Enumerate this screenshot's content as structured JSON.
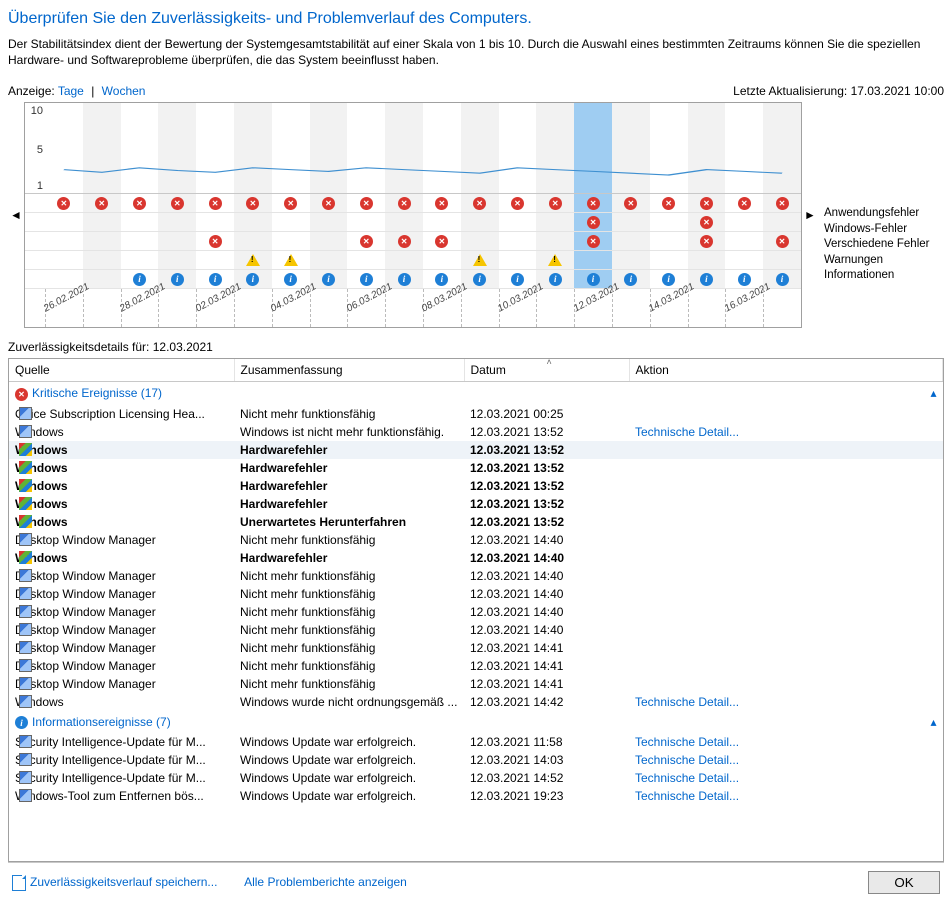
{
  "heading": "Überprüfen Sie den Zuverlässigkeits- und Problemverlauf des Computers.",
  "description": "Der Stabilitätsindex dient der Bewertung der Systemgesamtstabilität auf einer Skala von 1 bis 10. Durch die Auswahl eines bestimmten Zeitraums können Sie die speziellen Hardware- und Softwareprobleme überprüfen, die das System beeinflusst haben.",
  "view": {
    "label": "Anzeige:",
    "days": "Tage",
    "weeks": "Wochen",
    "updated_label": "Letzte Aktualisierung:",
    "updated_value": "17.03.2021 10:00"
  },
  "chart": {
    "yticks": [
      "10",
      "5",
      "1"
    ],
    "stability_values": [
      2.6,
      2.3,
      2.8,
      2.5,
      2.3,
      2.8,
      2.6,
      2.4,
      2.8,
      2.6,
      2.4,
      2.2,
      2.8,
      2.6,
      2.4,
      2.2,
      2.0,
      2.6,
      2.4,
      2.2
    ],
    "line_color": "#3e8fd0",
    "selected_index": 14,
    "days": [
      {
        "label": "26.02.2021",
        "shade": false,
        "err": true,
        "win": false,
        "misc": false,
        "warn": false,
        "info": false
      },
      {
        "label": "",
        "shade": true,
        "err": true,
        "win": false,
        "misc": false,
        "warn": false,
        "info": false
      },
      {
        "label": "28.02.2021",
        "shade": false,
        "err": true,
        "win": false,
        "misc": false,
        "warn": false,
        "info": true
      },
      {
        "label": "",
        "shade": true,
        "err": true,
        "win": false,
        "misc": false,
        "warn": false,
        "info": true
      },
      {
        "label": "02.03.2021",
        "shade": false,
        "err": true,
        "win": false,
        "misc": true,
        "warn": false,
        "info": true
      },
      {
        "label": "",
        "shade": true,
        "err": true,
        "win": false,
        "misc": false,
        "warn": true,
        "info": true
      },
      {
        "label": "04.03.2021",
        "shade": false,
        "err": true,
        "win": false,
        "misc": false,
        "warn": true,
        "info": true
      },
      {
        "label": "",
        "shade": true,
        "err": true,
        "win": false,
        "misc": false,
        "warn": false,
        "info": true
      },
      {
        "label": "06.03.2021",
        "shade": false,
        "err": true,
        "win": false,
        "misc": true,
        "warn": false,
        "info": true
      },
      {
        "label": "",
        "shade": true,
        "err": true,
        "win": false,
        "misc": true,
        "warn": false,
        "info": true
      },
      {
        "label": "08.03.2021",
        "shade": false,
        "err": true,
        "win": false,
        "misc": true,
        "warn": false,
        "info": true
      },
      {
        "label": "",
        "shade": true,
        "err": true,
        "win": false,
        "misc": false,
        "warn": true,
        "info": true
      },
      {
        "label": "10.03.2021",
        "shade": false,
        "err": true,
        "win": false,
        "misc": false,
        "warn": false,
        "info": true
      },
      {
        "label": "",
        "shade": true,
        "err": true,
        "win": false,
        "misc": false,
        "warn": true,
        "info": true
      },
      {
        "label": "12.03.2021",
        "shade": false,
        "err": true,
        "win": true,
        "misc": true,
        "warn": false,
        "info": true
      },
      {
        "label": "",
        "shade": true,
        "err": true,
        "win": false,
        "misc": false,
        "warn": false,
        "info": true
      },
      {
        "label": "14.03.2021",
        "shade": false,
        "err": true,
        "win": false,
        "misc": false,
        "warn": false,
        "info": true
      },
      {
        "label": "",
        "shade": true,
        "err": true,
        "win": true,
        "misc": true,
        "warn": false,
        "info": true
      },
      {
        "label": "16.03.2021",
        "shade": false,
        "err": true,
        "win": false,
        "misc": false,
        "warn": false,
        "info": true
      },
      {
        "label": "",
        "shade": true,
        "err": true,
        "win": false,
        "misc": true,
        "warn": false,
        "info": true
      }
    ],
    "legend": {
      "app": "Anwendungsfehler",
      "win": "Windows-Fehler",
      "misc": "Verschiedene Fehler",
      "warn": "Warnungen",
      "info": "Informationen"
    }
  },
  "details_for_label": "Zuverlässigkeitsdetails für:",
  "details_for_value": "12.03.2021",
  "columns": {
    "source": "Quelle",
    "summary": "Zusammenfassung",
    "date": "Datum",
    "action": "Aktion"
  },
  "groups": {
    "critical": "Kritische Ereignisse (17)",
    "info": "Informationsereignisse (7)"
  },
  "action_link": "Technische Detail...",
  "critical_rows": [
    {
      "ico": "app",
      "src": "Office Subscription Licensing Hea...",
      "sum": "Nicht mehr funktionsfähig",
      "date": "12.03.2021 00:25",
      "act": "",
      "bold": false
    },
    {
      "ico": "app",
      "src": "Windows",
      "sum": "Windows ist nicht mehr funktionsfähig.",
      "date": "12.03.2021 13:52",
      "act": "link",
      "bold": false
    },
    {
      "ico": "win",
      "src": "Windows",
      "sum": "Hardwarefehler",
      "date": "12.03.2021 13:52",
      "act": "",
      "bold": true,
      "selected": true
    },
    {
      "ico": "win",
      "src": "Windows",
      "sum": "Hardwarefehler",
      "date": "12.03.2021 13:52",
      "act": "",
      "bold": true
    },
    {
      "ico": "win",
      "src": "Windows",
      "sum": "Hardwarefehler",
      "date": "12.03.2021 13:52",
      "act": "",
      "bold": true
    },
    {
      "ico": "win",
      "src": "Windows",
      "sum": "Hardwarefehler",
      "date": "12.03.2021 13:52",
      "act": "",
      "bold": true
    },
    {
      "ico": "win",
      "src": "Windows",
      "sum": "Unerwartetes Herunterfahren",
      "date": "12.03.2021 13:52",
      "act": "",
      "bold": true
    },
    {
      "ico": "app",
      "src": "Desktop Window Manager",
      "sum": "Nicht mehr funktionsfähig",
      "date": "12.03.2021 14:40",
      "act": "",
      "bold": false
    },
    {
      "ico": "win",
      "src": "Windows",
      "sum": "Hardwarefehler",
      "date": "12.03.2021 14:40",
      "act": "",
      "bold": true
    },
    {
      "ico": "app",
      "src": "Desktop Window Manager",
      "sum": "Nicht mehr funktionsfähig",
      "date": "12.03.2021 14:40",
      "act": "",
      "bold": false
    },
    {
      "ico": "app",
      "src": "Desktop Window Manager",
      "sum": "Nicht mehr funktionsfähig",
      "date": "12.03.2021 14:40",
      "act": "",
      "bold": false
    },
    {
      "ico": "app",
      "src": "Desktop Window Manager",
      "sum": "Nicht mehr funktionsfähig",
      "date": "12.03.2021 14:40",
      "act": "",
      "bold": false
    },
    {
      "ico": "app",
      "src": "Desktop Window Manager",
      "sum": "Nicht mehr funktionsfähig",
      "date": "12.03.2021 14:40",
      "act": "",
      "bold": false
    },
    {
      "ico": "app",
      "src": "Desktop Window Manager",
      "sum": "Nicht mehr funktionsfähig",
      "date": "12.03.2021 14:41",
      "act": "",
      "bold": false
    },
    {
      "ico": "app",
      "src": "Desktop Window Manager",
      "sum": "Nicht mehr funktionsfähig",
      "date": "12.03.2021 14:41",
      "act": "",
      "bold": false
    },
    {
      "ico": "app",
      "src": "Desktop Window Manager",
      "sum": "Nicht mehr funktionsfähig",
      "date": "12.03.2021 14:41",
      "act": "",
      "bold": false
    },
    {
      "ico": "app",
      "src": "Windows",
      "sum": "Windows wurde nicht ordnungsgemäß ...",
      "date": "12.03.2021 14:42",
      "act": "link",
      "bold": false
    }
  ],
  "info_rows": [
    {
      "ico": "app",
      "src": "Security Intelligence-Update für M...",
      "sum": "Windows Update war erfolgreich.",
      "date": "12.03.2021 11:58",
      "act": "link"
    },
    {
      "ico": "app",
      "src": "Security Intelligence-Update für M...",
      "sum": "Windows Update war erfolgreich.",
      "date": "12.03.2021 14:03",
      "act": "link"
    },
    {
      "ico": "app",
      "src": "Security Intelligence-Update für M...",
      "sum": "Windows Update war erfolgreich.",
      "date": "12.03.2021 14:52",
      "act": "link"
    },
    {
      "ico": "app",
      "src": "Windows-Tool zum Entfernen bös...",
      "sum": "Windows Update war erfolgreich.",
      "date": "12.03.2021 19:23",
      "act": "link"
    }
  ],
  "footer": {
    "save": "Zuverlässigkeitsverlauf speichern...",
    "showall": "Alle Problemberichte anzeigen",
    "ok": "OK"
  }
}
